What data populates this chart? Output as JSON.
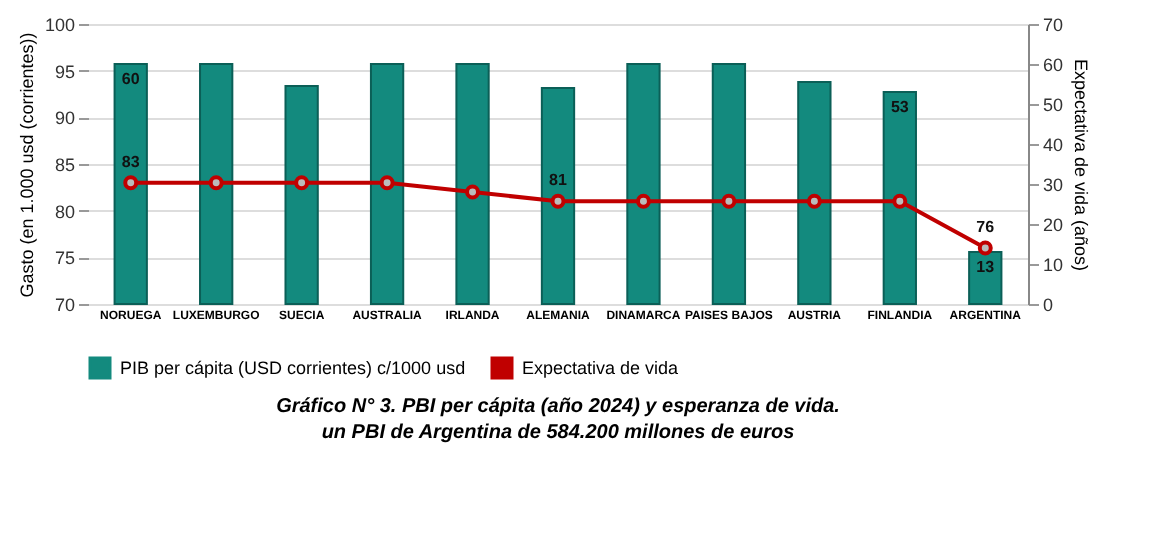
{
  "chart_data": {
    "type": "bar",
    "title": "Gráfico N° 3. PBI per cápita (año 2024) y esperanza de vida.",
    "annotations": [
      "un PBI de Argentina de 584.200 millones de euros"
    ],
    "ylabel": "Gasto (en 1.000 usd (corrientes))",
    "y2label": "Expectativa de vida (años)",
    "categories": [
      "NORUEGA",
      "LUXEMBURGO",
      "SUECIA",
      "AUSTRALIA",
      "IRLANDA",
      "ALEMANIA",
      "DINAMARCA",
      "PAISES BAJOS",
      "AUSTRIA",
      "FINLANDIA",
      "ARGENTINA"
    ],
    "series": [
      {
        "name": "PIB per cápita (USD corrientes) c/1000 usd",
        "type": "bar",
        "axis": "y2",
        "color": "#138a7e",
        "values": [
          60,
          60,
          54.5,
          60,
          60,
          54,
          60,
          60,
          55.5,
          53,
          13
        ],
        "value_labels": [
          "60",
          null,
          null,
          null,
          null,
          null,
          null,
          null,
          null,
          "53",
          "13"
        ]
      },
      {
        "name": "Expectativa de vida",
        "type": "line",
        "axis": "y",
        "color": "#c00000",
        "marker": "circle",
        "values": [
          83,
          83,
          83,
          83,
          82,
          81,
          81,
          81,
          81,
          81,
          76
        ],
        "value_labels": [
          "83",
          null,
          null,
          null,
          null,
          "81",
          null,
          null,
          null,
          null,
          "76"
        ]
      }
    ],
    "ylim": [
      70,
      100
    ],
    "yticks": [
      70,
      75,
      80,
      85,
      90,
      95,
      100
    ],
    "y2lim": [
      0,
      70
    ],
    "y2ticks": [
      0,
      10,
      20,
      30,
      40,
      50,
      60,
      70
    ],
    "grid": "y",
    "legend": "bottom"
  }
}
